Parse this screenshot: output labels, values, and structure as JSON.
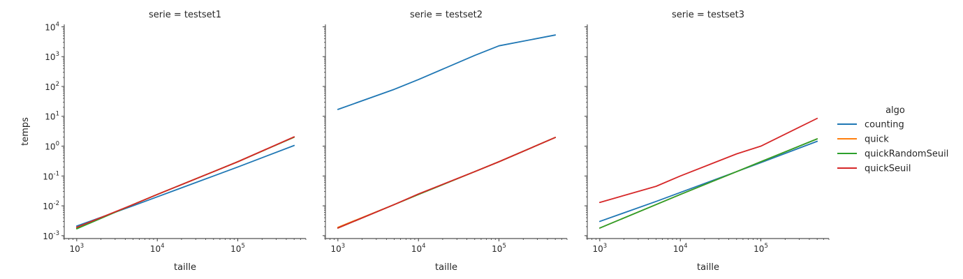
{
  "legend": {
    "title": "algo",
    "entries": [
      {
        "name": "counting",
        "color": "#1f77b4"
      },
      {
        "name": "quick",
        "color": "#ff7f0e"
      },
      {
        "name": "quickRandomSeuil",
        "color": "#2ca02c"
      },
      {
        "name": "quickSeuil",
        "color": "#d62728"
      }
    ]
  },
  "chart_data": [
    {
      "type": "line",
      "title": "serie = testset1",
      "xlabel": "taille",
      "ylabel": "temps",
      "xscale": "log",
      "yscale": "log",
      "xlim": [
        700,
        700000
      ],
      "ylim": [
        0.0008,
        12000
      ],
      "x_ticks": [
        "10^3",
        "10^4",
        "10^5"
      ],
      "y_ticks": [
        "10^-3",
        "10^-2",
        "10^-1",
        "10^0",
        "10^1",
        "10^2",
        "10^3",
        "10^4"
      ],
      "x": [
        1000,
        5000,
        10000,
        50000,
        100000,
        500000
      ],
      "series": [
        {
          "name": "counting",
          "values": [
            0.0021,
            0.01,
            0.02,
            0.1,
            0.2,
            1.05
          ]
        },
        {
          "name": "quick",
          "values": [
            0.0018,
            0.011,
            0.024,
            0.14,
            0.3,
            2.0
          ]
        },
        {
          "name": "quickRandomSeuil",
          "values": [
            0.0017,
            0.011,
            0.024,
            0.14,
            0.3,
            2.0
          ]
        },
        {
          "name": "quickSeuil",
          "values": [
            0.0019,
            0.011,
            0.024,
            0.14,
            0.3,
            2.05
          ]
        }
      ],
      "grid": false
    },
    {
      "type": "line",
      "title": "serie = testset2",
      "xlabel": "taille",
      "ylabel": "",
      "xscale": "log",
      "yscale": "log",
      "xlim": [
        700,
        700000
      ],
      "ylim": [
        0.0008,
        12000
      ],
      "x_ticks": [
        "10^3",
        "10^4",
        "10^5"
      ],
      "y_ticks": [],
      "x": [
        1000,
        5000,
        10000,
        50000,
        100000,
        500000
      ],
      "series": [
        {
          "name": "counting",
          "values": [
            17,
            80,
            170,
            1100,
            2300,
            5300
          ]
        },
        {
          "name": "quick",
          "values": [
            0.0019,
            0.011,
            0.024,
            0.14,
            0.3,
            1.95
          ]
        },
        {
          "name": "quickRandomSeuil",
          "values": [
            0.0018,
            0.011,
            0.024,
            0.14,
            0.3,
            1.95
          ]
        },
        {
          "name": "quickSeuil",
          "values": [
            0.0018,
            0.011,
            0.025,
            0.14,
            0.3,
            1.95
          ]
        }
      ],
      "grid": false
    },
    {
      "type": "line",
      "title": "serie = testset3",
      "xlabel": "taille",
      "ylabel": "",
      "xscale": "log",
      "yscale": "log",
      "xlim": [
        700,
        700000
      ],
      "ylim": [
        0.0008,
        12000
      ],
      "x_ticks": [
        "10^3",
        "10^4",
        "10^5"
      ],
      "y_ticks": [],
      "x": [
        1000,
        5000,
        10000,
        50000,
        100000,
        500000
      ],
      "series": [
        {
          "name": "counting",
          "values": [
            0.003,
            0.014,
            0.028,
            0.14,
            0.28,
            1.45
          ]
        },
        {
          "name": "quick",
          "values": [
            0.0018,
            0.011,
            0.024,
            0.14,
            0.3,
            1.75
          ]
        },
        {
          "name": "quickRandomSeuil",
          "values": [
            0.0018,
            0.011,
            0.024,
            0.14,
            0.3,
            1.75
          ]
        },
        {
          "name": "quickSeuil",
          "values": [
            0.013,
            0.045,
            0.1,
            0.55,
            1.0,
            8.5
          ]
        }
      ],
      "grid": false
    }
  ]
}
